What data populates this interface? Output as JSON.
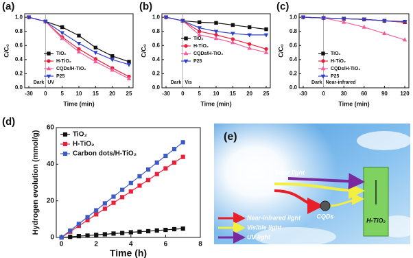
{
  "chart_data": [
    {
      "type": "line",
      "label": "(a)",
      "ylabel": "C/C₀",
      "xlabel": "Time (min)",
      "categories": [
        "-30",
        "0",
        "5",
        "10",
        "15",
        "20",
        "25"
      ],
      "annotations": [
        "Dark",
        "UV"
      ],
      "ylim": [
        0,
        1.05
      ],
      "yticks": [
        {
          "value": 0,
          "label": "0.0"
        },
        0.2,
        0.4,
        0.6,
        0.8,
        {
          "value": 1,
          "label": "1.0"
        }
      ],
      "legend": "lower left",
      "series": [
        {
          "name": "TiO₂",
          "color": "#111111",
          "marker": "square",
          "values": [
            1.0,
            0.94,
            0.86,
            0.74,
            0.57,
            0.45,
            0.37
          ]
        },
        {
          "name": "H-TiO₂",
          "color": "#e8213a",
          "marker": "circle",
          "values": [
            1.0,
            0.94,
            0.72,
            0.55,
            0.41,
            0.28,
            0.16
          ]
        },
        {
          "name": "CQDs/H-TiO₂",
          "color": "#f0609a",
          "marker": "triangle-up",
          "values": [
            1.0,
            0.94,
            0.7,
            0.51,
            0.37,
            0.25,
            0.13
          ]
        },
        {
          "name": "P25",
          "color": "#2b3fc9",
          "marker": "triangle-down",
          "values": [
            1.0,
            0.94,
            0.78,
            0.63,
            0.5,
            0.4,
            0.33
          ]
        }
      ]
    },
    {
      "type": "line",
      "label": "(b)",
      "ylabel": "C/C₀",
      "xlabel": "Time (min)",
      "categories": [
        "-30",
        "0",
        "5",
        "10",
        "15",
        "20",
        "25"
      ],
      "annotations": [
        "Dark",
        "Vis"
      ],
      "ylim": [
        0,
        1.05
      ],
      "yticks": [
        {
          "value": 0,
          "label": "0.0"
        },
        0.2,
        0.4,
        0.6,
        0.8,
        {
          "value": 1,
          "label": "1.0"
        }
      ],
      "legend": "center left",
      "series": [
        {
          "name": "TiO₂",
          "color": "#111111",
          "marker": "square",
          "values": [
            1.0,
            0.95,
            0.93,
            0.92,
            0.89,
            0.86,
            0.83
          ]
        },
        {
          "name": "H-TiO₂",
          "color": "#e8213a",
          "marker": "circle",
          "values": [
            1.0,
            0.95,
            0.8,
            0.75,
            0.69,
            0.62,
            0.55
          ]
        },
        {
          "name": "CQDs/H-TiO₂",
          "color": "#f0609a",
          "marker": "triangle-up",
          "values": [
            1.0,
            0.95,
            0.75,
            0.7,
            0.64,
            0.56,
            0.5
          ]
        },
        {
          "name": "P25",
          "color": "#2b3fc9",
          "marker": "triangle-down",
          "values": [
            1.0,
            0.95,
            0.85,
            0.8,
            0.77,
            0.75,
            0.75
          ]
        }
      ]
    },
    {
      "type": "line",
      "label": "(c)",
      "ylabel": "C/C₀",
      "xlabel": "Time (min)",
      "categories": [
        "-30",
        "0",
        "30",
        "60",
        "90",
        "120"
      ],
      "annotations": [
        "Dark",
        "Near-infrared"
      ],
      "ylim": [
        0,
        1.05
      ],
      "yticks": [
        {
          "value": 0,
          "label": "0.0"
        },
        0.2,
        0.4,
        0.6,
        0.8,
        {
          "value": 1,
          "label": "1.0"
        }
      ],
      "legend": "lower left",
      "series": [
        {
          "name": "TiO₂",
          "color": "#111111",
          "marker": "square",
          "values": [
            1.0,
            0.99,
            0.98,
            0.97,
            0.95,
            0.93
          ]
        },
        {
          "name": "H-TiO₂",
          "color": "#e8213a",
          "marker": "circle",
          "values": [
            1.0,
            0.99,
            0.98,
            0.97,
            0.95,
            0.93
          ]
        },
        {
          "name": "CQDs/H-TiO₂",
          "color": "#f0609a",
          "marker": "triangle-up",
          "values": [
            1.0,
            0.99,
            0.93,
            0.86,
            0.77,
            0.68
          ]
        },
        {
          "name": "P25",
          "color": "#2b3fc9",
          "marker": "triangle-down",
          "values": [
            1.0,
            0.99,
            0.98,
            0.97,
            0.95,
            0.94
          ]
        }
      ]
    },
    {
      "type": "line",
      "label": "(d)",
      "ylabel": "Hydrogen evolution (mmol/g)",
      "xlabel": "Time (h)",
      "x": [
        0,
        0.5,
        1,
        1.5,
        2,
        2.5,
        3,
        3.5,
        4,
        4.5,
        5,
        5.5,
        6,
        6.5,
        7
      ],
      "xlim": [
        -0.3,
        8
      ],
      "xticks": [
        0,
        2,
        4,
        6,
        8
      ],
      "ylim": [
        0,
        60
      ],
      "yticks": [
        0,
        20,
        40,
        60
      ],
      "legend": "upper left",
      "series": [
        {
          "name": "TiO₂",
          "color": "#111111",
          "marker": "square",
          "values": [
            0,
            0.3,
            0.7,
            1.0,
            1.4,
            1.7,
            2.1,
            2.4,
            2.8,
            3.1,
            3.4,
            3.8,
            4.1,
            4.5,
            4.8
          ]
        },
        {
          "name": "H-TiO₂",
          "color": "#e8213a",
          "marker": "square",
          "values": [
            0,
            3.1,
            6.3,
            9.4,
            12.6,
            15.7,
            18.9,
            22.0,
            25.1,
            28.3,
            31.4,
            34.6,
            37.7,
            40.9,
            44.0
          ]
        },
        {
          "name": "Carbon dots/H-TiO₂",
          "color": "#3d5bc4",
          "marker": "square",
          "values": [
            0,
            3.7,
            7.4,
            11.1,
            14.8,
            18.6,
            22.3,
            26.0,
            29.7,
            33.4,
            37.1,
            40.9,
            44.6,
            48.3,
            52.0
          ]
        }
      ]
    }
  ],
  "illustration": {
    "label": "(e)",
    "solar": "Solar light",
    "cqds": "CQDs",
    "catalyst": "H-TiO₂",
    "legend": [
      "Near-infrared light",
      "Visible light",
      "UV light"
    ]
  }
}
